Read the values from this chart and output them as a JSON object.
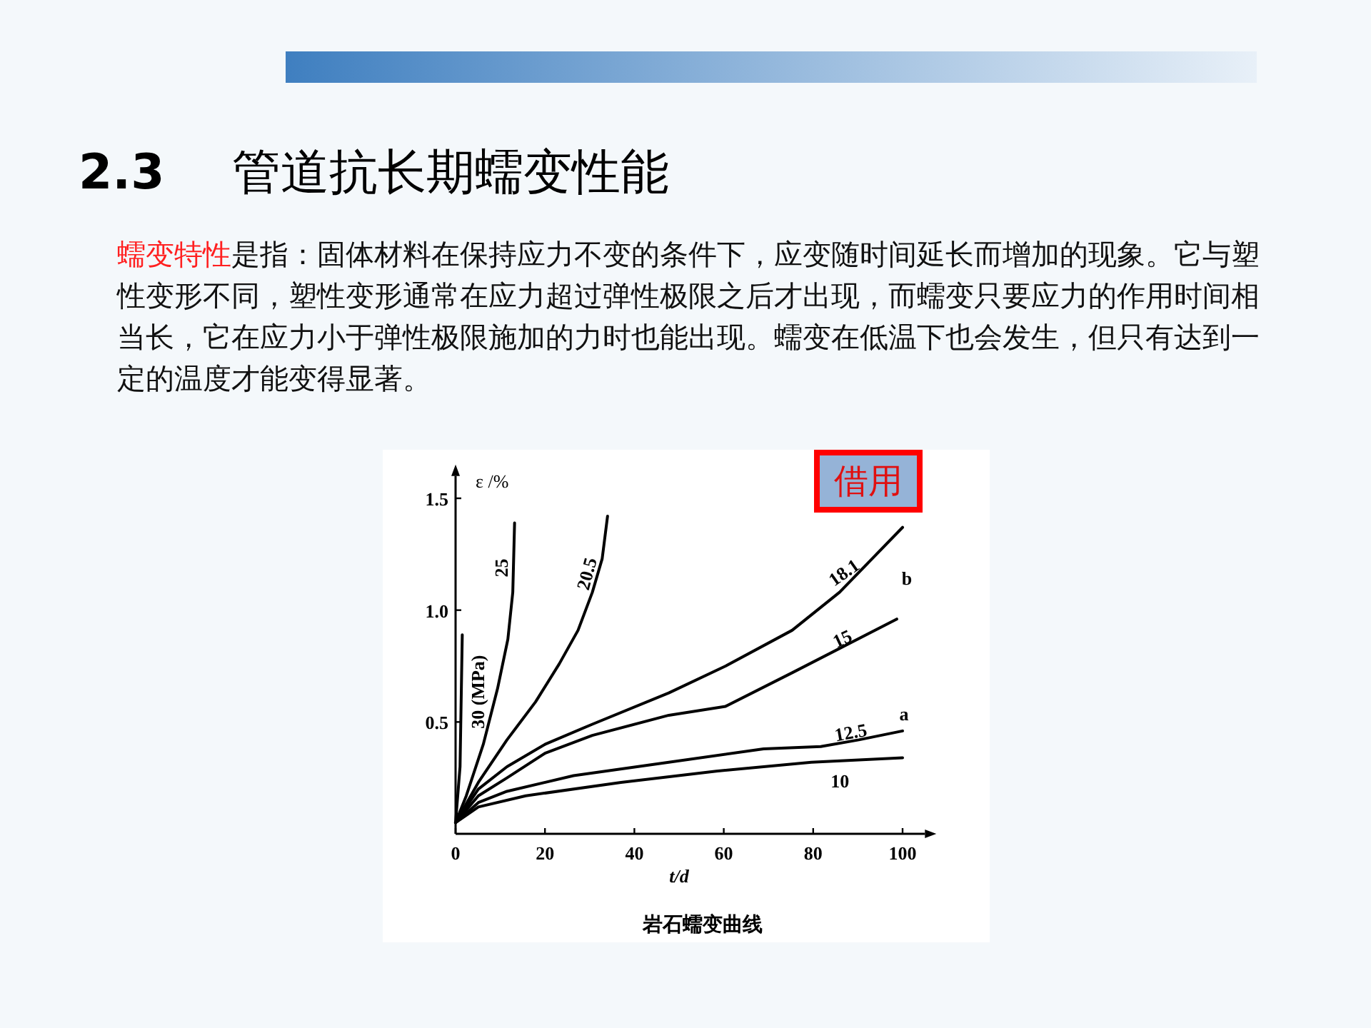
{
  "chart_data": {
    "type": "line",
    "title": "2.3 管道抗长期蠕变性能",
    "xlabel": "t/d",
    "ylabel": "ε /%",
    "annotations": [
      "蠕变特性",
      "是指：固体材料在保持应力不变的条件下，应变随时间延长而增加的现象。它与塑性变形不同，塑性变形通常在应力超过弹性极限之后才出现，而蠕变只要应力的作用时间相当长，它在应力小于弹性极限施加的力时也能出现。蠕变在低温下也会发生，但只有达到一定的温度才能变得显著。",
      "借用",
      "岩石蠕变曲线",
      "a",
      "b"
    ],
    "xlim": [
      0,
      105
    ],
    "ylim": [
      0,
      1.6
    ],
    "xticks": [
      0,
      20,
      40,
      60,
      80,
      100
    ],
    "yticks": [
      0.5,
      {
        "value": 1.0,
        "label": "1.0"
      },
      1.5
    ],
    "grid": false,
    "marker": "none",
    "line_style": "solid",
    "series": [
      {
        "name": "30 (MPa)",
        "color": "#000000",
        "x": [
          0,
          1,
          1.5
        ],
        "values": [
          0.05,
          0.3,
          0.89
        ]
      },
      {
        "name": "25",
        "color": "#000000",
        "x": [
          0,
          2.4,
          6.2,
          9.4,
          11.7,
          12.8,
          13.2
        ],
        "values": [
          0.05,
          0.17,
          0.4,
          0.65,
          0.87,
          1.08,
          1.39
        ]
      },
      {
        "name": "20.5",
        "color": "#000000",
        "x": [
          0,
          5.1,
          11.5,
          17.9,
          23.2,
          27.4,
          30.6,
          32.8,
          34
        ],
        "values": [
          0.05,
          0.23,
          0.42,
          0.59,
          0.76,
          0.91,
          1.08,
          1.23,
          1.42
        ]
      },
      {
        "name": "18.1",
        "color": "#000000",
        "x": [
          0,
          5.1,
          11.5,
          20,
          30.6,
          47.7,
          60.4,
          75.3,
          85.9,
          100
        ],
        "values": [
          0.05,
          0.2,
          0.3,
          0.4,
          0.49,
          0.63,
          0.75,
          0.91,
          1.08,
          1.37
        ]
      },
      {
        "name": "15",
        "color": "#000000",
        "x": [
          0,
          5.1,
          11.5,
          20,
          30.6,
          47.7,
          60.4,
          75.3,
          98.7
        ],
        "values": [
          0.05,
          0.17,
          0.25,
          0.36,
          0.44,
          0.53,
          0.57,
          0.72,
          0.96
        ]
      },
      {
        "name": "12.5",
        "color": "#000000",
        "x": [
          0,
          5.1,
          11.5,
          26.4,
          47.7,
          68.9,
          81.7,
          90.2,
          100
        ],
        "values": [
          0.05,
          0.14,
          0.19,
          0.26,
          0.32,
          0.38,
          0.39,
          0.42,
          0.46
        ]
      },
      {
        "name": "10",
        "color": "#000000",
        "x": [
          0,
          5.1,
          15.7,
          37,
          58.3,
          79.6,
          100
        ],
        "values": [
          0.05,
          0.12,
          0.17,
          0.23,
          0.28,
          0.32,
          0.34
        ]
      }
    ]
  }
}
